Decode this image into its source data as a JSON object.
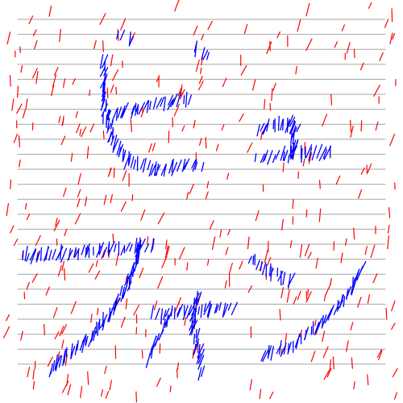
{
  "canvas": {
    "background": "#ffffff",
    "rule_color": "#a6a6a6",
    "rule_count": 24,
    "noise_color": "#ff0000",
    "glyph_color": "#0000ff",
    "glyph_stroke_count": 4
  }
}
